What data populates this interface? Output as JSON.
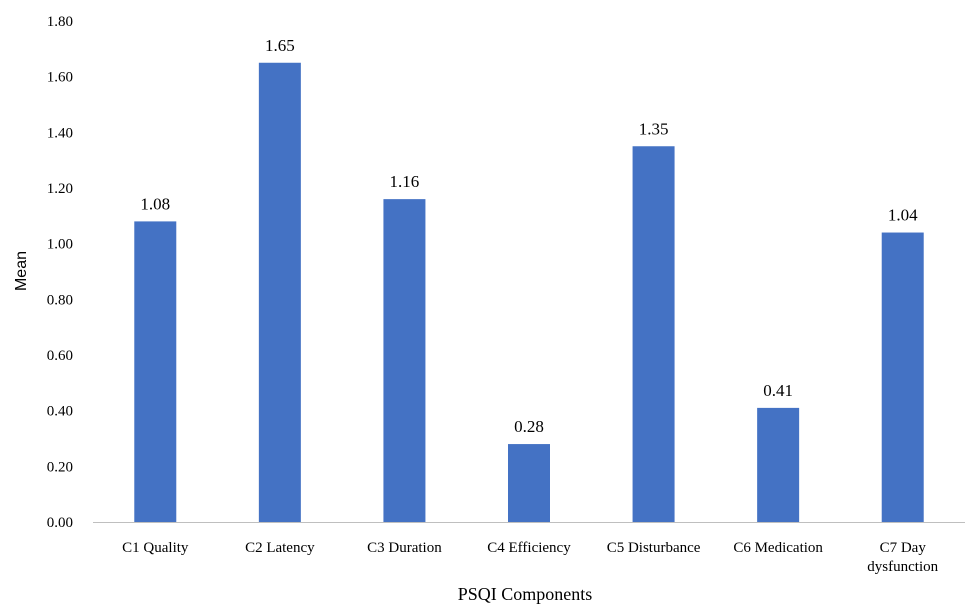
{
  "chart_data": {
    "type": "bar",
    "title": "",
    "xlabel": "PSQI Components",
    "ylabel": "Mean",
    "categories": [
      [
        "C1 Quality"
      ],
      [
        "C2  Latency"
      ],
      [
        "C3 Duration"
      ],
      [
        "C4 Efficiency"
      ],
      [
        "C5 Disturbance"
      ],
      [
        "C6 Medication"
      ],
      [
        "C7 Day",
        "dysfunction"
      ]
    ],
    "values": [
      1.08,
      1.65,
      1.16,
      0.28,
      1.35,
      0.41,
      1.04
    ],
    "value_labels": [
      "1.08",
      "1.65",
      "1.16",
      "0.28",
      "1.35",
      "0.41",
      "1.04"
    ],
    "ylim": [
      0,
      1.8
    ],
    "yticks": [
      "0.00",
      "0.20",
      "0.40",
      "0.60",
      "0.80",
      "1.00",
      "1.20",
      "1.40",
      "1.60",
      "1.80"
    ],
    "bar_color": "#4472C4",
    "grid": false,
    "legend": "none"
  }
}
